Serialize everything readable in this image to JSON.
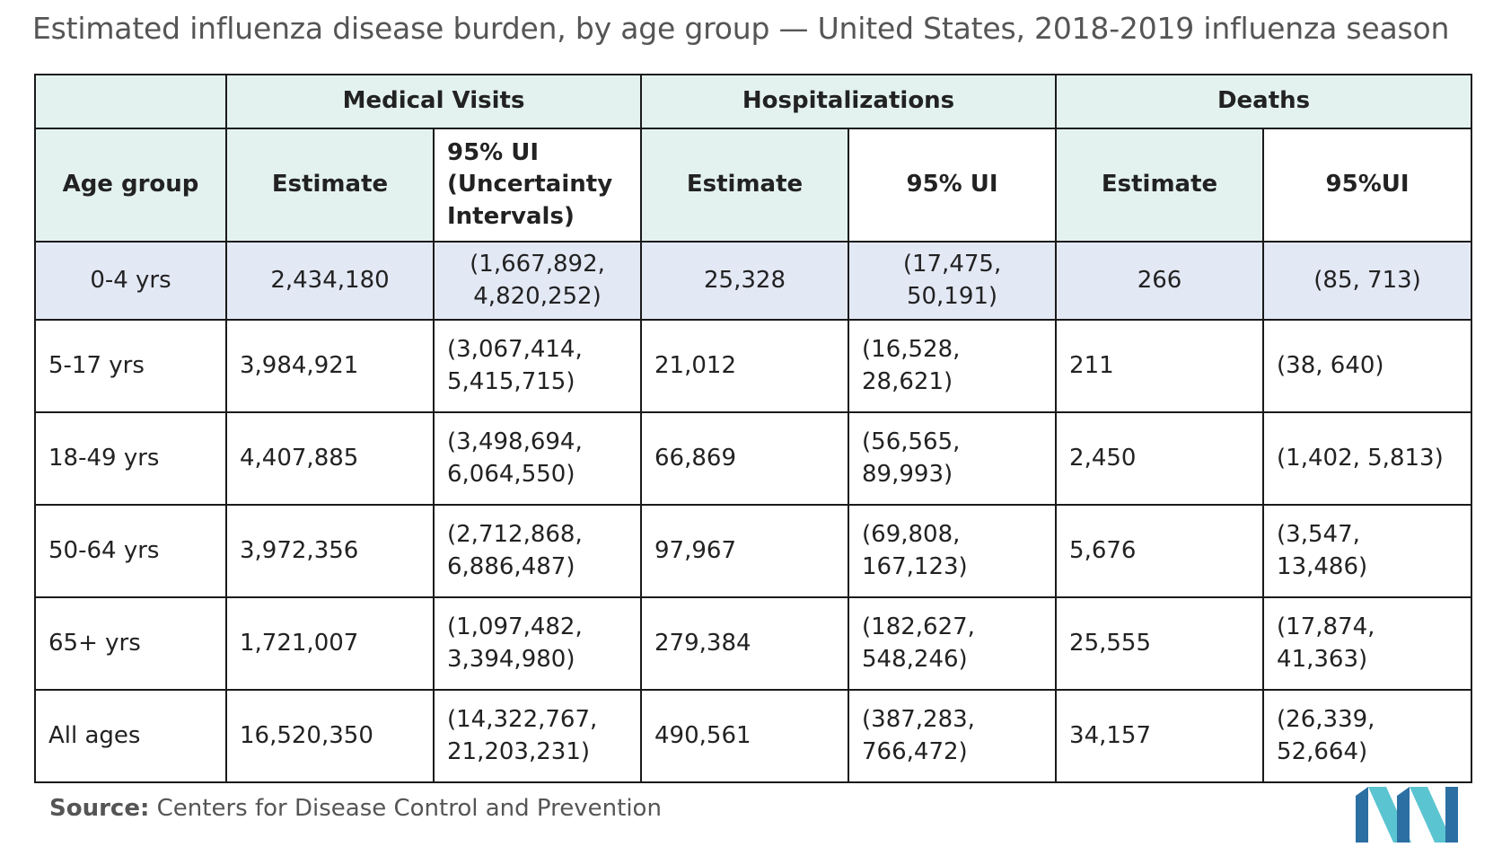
{
  "title": "Estimated influenza disease burden, by age group — United States, 2018-2019 influenza season",
  "groups": [
    "Medical Visits",
    "Hospitalizations",
    "Deaths"
  ],
  "subheaders": {
    "age": "Age group",
    "mv_est": "Estimate",
    "mv_ui": "95% UI (Uncertainty Intervals)",
    "hosp_est": "Estimate",
    "hosp_ui": "95% UI",
    "death_est": "Estimate",
    "death_ui": "95%UI"
  },
  "rows": [
    {
      "age": "0-4 yrs",
      "mv_est": "2,434,180",
      "mv_ui": "(1,667,892, 4,820,252)",
      "hosp_est": "25,328",
      "hosp_ui": "(17,475, 50,191)",
      "death_est": "266",
      "death_ui": "(85, 713)"
    },
    {
      "age": "5-17 yrs",
      "mv_est": "3,984,921",
      "mv_ui": "(3,067,414, 5,415,715)",
      "hosp_est": "21,012",
      "hosp_ui": "(16,528, 28,621)",
      "death_est": "211",
      "death_ui": "(38, 640)"
    },
    {
      "age": "18-49 yrs",
      "mv_est": "4,407,885",
      "mv_ui": "(3,498,694, 6,064,550)",
      "hosp_est": "66,869",
      "hosp_ui": "(56,565, 89,993)",
      "death_est": "2,450",
      "death_ui": "(1,402, 5,813)"
    },
    {
      "age": "50-64 yrs",
      "mv_est": "3,972,356",
      "mv_ui": "(2,712,868, 6,886,487)",
      "hosp_est": "97,967",
      "hosp_ui": "(69,808, 167,123)",
      "death_est": "5,676",
      "death_ui": "(3,547, 13,486)"
    },
    {
      "age": "65+ yrs",
      "mv_est": "1,721,007",
      "mv_ui": "(1,097,482, 3,394,980)",
      "hosp_est": "279,384",
      "hosp_ui": "(182,627, 548,246)",
      "death_est": "25,555",
      "death_ui": "(17,874, 41,363)"
    },
    {
      "age": "All ages",
      "mv_est": "16,520,350",
      "mv_ui": "(14,322,767, 21,203,231)",
      "hosp_est": "490,561",
      "hosp_ui": "(387,283, 766,472)",
      "death_est": "34,157",
      "death_ui": "(26,339, 52,664)"
    }
  ],
  "source_label": "Source:",
  "source_text": "Centers for Disease Control and Prevention",
  "colors": {
    "header_bg": "#e3f2ef",
    "highlight_row_bg": "#e3e8f5",
    "logo_dark": "#2b6fa3",
    "logo_light": "#5bc4d1"
  },
  "chart_data": {
    "type": "table",
    "title": "Estimated influenza disease burden, by age group — United States, 2018-2019 influenza season",
    "column_groups": [
      "Medical Visits",
      "Hospitalizations",
      "Deaths"
    ],
    "columns": [
      "Age group",
      "Estimate",
      "95% UI (Uncertainty Intervals)",
      "Estimate",
      "95% UI",
      "Estimate",
      "95%UI"
    ],
    "rows": [
      [
        "0-4 yrs",
        2434180,
        [
          1667892,
          4820252
        ],
        25328,
        [
          17475,
          50191
        ],
        266,
        [
          85,
          713
        ]
      ],
      [
        "5-17 yrs",
        3984921,
        [
          3067414,
          5415715
        ],
        21012,
        [
          16528,
          28621
        ],
        211,
        [
          38,
          640
        ]
      ],
      [
        "18-49 yrs",
        4407885,
        [
          3498694,
          6064550
        ],
        66869,
        [
          56565,
          89993
        ],
        2450,
        [
          1402,
          5813
        ]
      ],
      [
        "50-64 yrs",
        3972356,
        [
          2712868,
          6886487
        ],
        97967,
        [
          69808,
          167123
        ],
        5676,
        [
          3547,
          13486
        ]
      ],
      [
        "65+ yrs",
        1721007,
        [
          1097482,
          3394980
        ],
        279384,
        [
          182627,
          548246
        ],
        25555,
        [
          17874,
          41363
        ]
      ],
      [
        "All ages",
        16520350,
        [
          14322767,
          21203231
        ],
        490561,
        [
          387283,
          766472
        ],
        34157,
        [
          26339,
          52664
        ]
      ]
    ]
  }
}
